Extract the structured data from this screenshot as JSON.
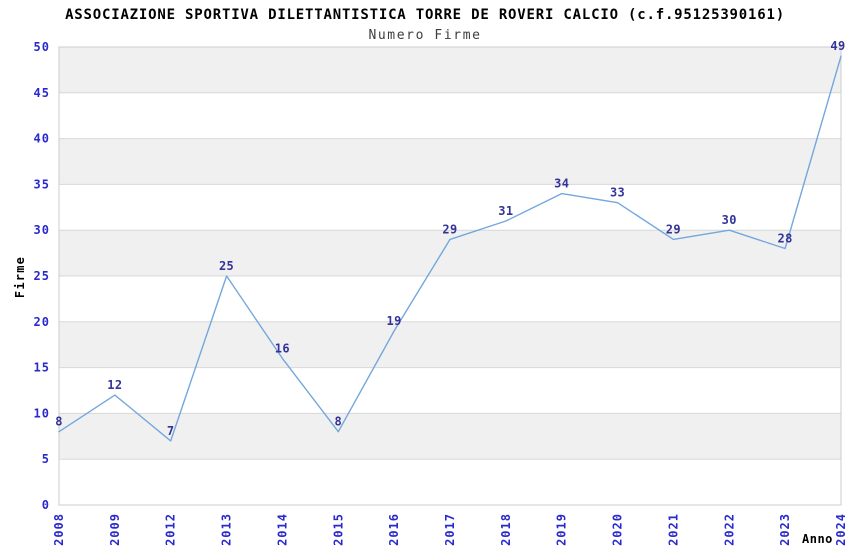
{
  "chart_data": {
    "type": "line",
    "title": "ASSOCIAZIONE SPORTIVA DILETTANTISTICA TORRE DE ROVERI CALCIO (c.f.95125390161)",
    "subtitle": "Numero Firme",
    "xlabel": "Anno",
    "ylabel": "Firme",
    "categories": [
      "2008",
      "2009",
      "2012",
      "2013",
      "2014",
      "2015",
      "2016",
      "2017",
      "2018",
      "2019",
      "2020",
      "2021",
      "2022",
      "2023",
      "2024"
    ],
    "values": [
      8,
      12,
      7,
      25,
      16,
      8,
      19,
      29,
      31,
      34,
      33,
      29,
      30,
      28,
      49
    ],
    "ylim": [
      0,
      50
    ],
    "ytick_step": 5,
    "grid": "horizontal-gridlines-with-alternating-bands",
    "legend": "none",
    "markers": "none",
    "data_labels_shown": true,
    "colors": {
      "line": "#74a7dd",
      "tick_labels": "#2929cc",
      "data_labels": "#333399",
      "band": "#f0f0f0",
      "gridline": "#d8d8d8",
      "border": "#cccccc",
      "title": "#000000",
      "subtitle": "#3d3d3d",
      "axis_titles": "#000000",
      "background": "#ffffff"
    }
  }
}
